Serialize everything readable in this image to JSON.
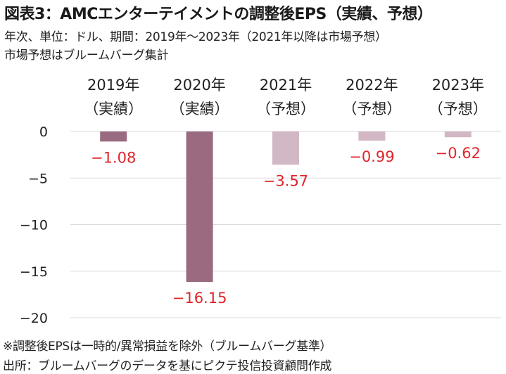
{
  "header": {
    "title": "図表3：AMCエンターテイメントの調整後EPS（実績、予想）",
    "subtitle1": "年次、単位：ドル、期間：2019年～2023年（2021年以降は市場予想）",
    "subtitle2": "市場予想はブルームバーグ集計"
  },
  "footer": {
    "note": "※調整後EPSは一時的/異常損益を除外（ブルームバーグ基準）",
    "source": "出所：ブルームバーグのデータを基にピクテ投信投資顧問作成"
  },
  "colors": {
    "actual": "#9a6a80",
    "forecast": "#d1b8c4",
    "label": "#e0242c",
    "grid": "#d9d9d9"
  },
  "chart_data": {
    "type": "bar",
    "categories": [
      {
        "year": "2019年",
        "kind": "（実績）"
      },
      {
        "year": "2020年",
        "kind": "（実績）"
      },
      {
        "year": "2021年",
        "kind": "（予想）"
      },
      {
        "year": "2022年",
        "kind": "（予想）"
      },
      {
        "year": "2023年",
        "kind": "（予想）"
      }
    ],
    "values": [
      -1.08,
      -16.15,
      -3.57,
      -0.99,
      -0.62
    ],
    "value_labels": [
      "-1.08",
      "-16.15",
      "-3.57",
      "-0.99",
      "-0.62"
    ],
    "forecast_flags": [
      false,
      false,
      true,
      true,
      true
    ],
    "ylim": [
      -20,
      0
    ],
    "yticks": [
      0,
      -5,
      -10,
      -15,
      -20
    ],
    "ytick_labels": [
      "0",
      "-5",
      "-10",
      "-15",
      "-20"
    ],
    "grid": true,
    "legend": "none"
  }
}
